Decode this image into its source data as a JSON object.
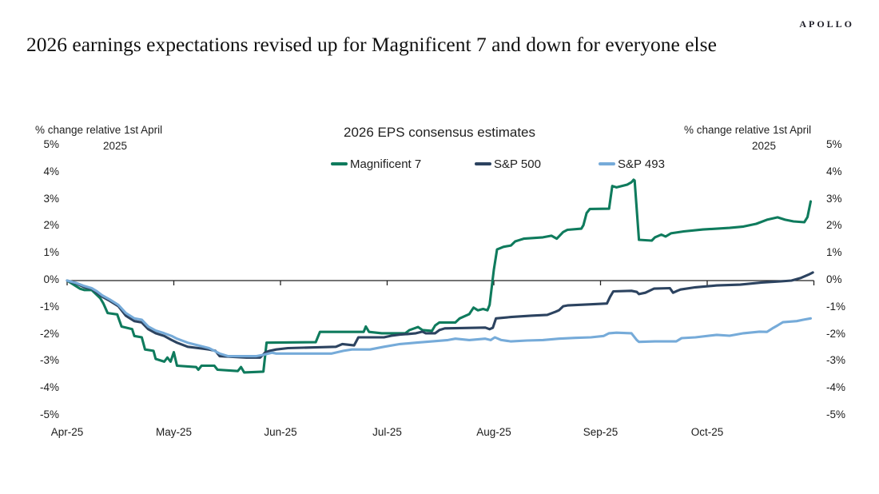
{
  "header": {
    "logo": "APOLLO",
    "title": "2026 earnings expectations revised up for Magnificent 7 and down for everyone else"
  },
  "axis_note": {
    "line1": "% change relative 1st April",
    "line2": "2025"
  },
  "chart_data": {
    "type": "line",
    "title": "2026 EPS consensus estimates",
    "xlabel": "",
    "ylabel": "% change relative 1st April 2025",
    "x_unit": "months since 2025-04-01",
    "x_tick_labels": [
      "Apr-25",
      "May-25",
      "Jun-25",
      "Jul-25",
      "Aug-25",
      "Sep-25",
      "Oct-25"
    ],
    "x_tick_positions": [
      0,
      1,
      2,
      3,
      4,
      5,
      6
    ],
    "x_axis_end": 7,
    "y_ticks": [
      5,
      4,
      3,
      2,
      1,
      0,
      -1,
      -2,
      -3,
      -4,
      -5
    ],
    "y_tick_suffix": "%",
    "ylim": [
      -5,
      5
    ],
    "grid": false,
    "legend_position": "top",
    "axis_color": "#222222",
    "series": [
      {
        "name": "Magnificent 7",
        "color": "#0f7b5d",
        "points": [
          [
            0,
            0
          ],
          [
            0.02,
            -0.05
          ],
          [
            0.12,
            -0.3
          ],
          [
            0.16,
            -0.35
          ],
          [
            0.23,
            -0.35
          ],
          [
            0.31,
            -0.65
          ],
          [
            0.34,
            -0.85
          ],
          [
            0.38,
            -1.2
          ],
          [
            0.47,
            -1.25
          ],
          [
            0.51,
            -1.7
          ],
          [
            0.61,
            -1.8
          ],
          [
            0.63,
            -2.05
          ],
          [
            0.7,
            -2.1
          ],
          [
            0.73,
            -2.55
          ],
          [
            0.81,
            -2.6
          ],
          [
            0.83,
            -2.9
          ],
          [
            0.91,
            -3.0
          ],
          [
            0.94,
            -2.85
          ],
          [
            0.97,
            -3.0
          ],
          [
            1.0,
            -2.65
          ],
          [
            1.03,
            -3.15
          ],
          [
            1.21,
            -3.2
          ],
          [
            1.23,
            -3.3
          ],
          [
            1.26,
            -3.15
          ],
          [
            1.38,
            -3.15
          ],
          [
            1.41,
            -3.3
          ],
          [
            1.6,
            -3.35
          ],
          [
            1.63,
            -3.2
          ],
          [
            1.66,
            -3.4
          ],
          [
            1.84,
            -3.37
          ],
          [
            1.87,
            -2.3
          ],
          [
            2.33,
            -2.28
          ],
          [
            2.37,
            -1.9
          ],
          [
            2.78,
            -1.9
          ],
          [
            2.8,
            -1.7
          ],
          [
            2.83,
            -1.9
          ],
          [
            2.95,
            -1.95
          ],
          [
            3.17,
            -1.95
          ],
          [
            3.21,
            -1.83
          ],
          [
            3.29,
            -1.72
          ],
          [
            3.33,
            -1.83
          ],
          [
            3.42,
            -1.86
          ],
          [
            3.45,
            -1.66
          ],
          [
            3.49,
            -1.55
          ],
          [
            3.64,
            -1.55
          ],
          [
            3.68,
            -1.4
          ],
          [
            3.77,
            -1.24
          ],
          [
            3.81,
            -1.0
          ],
          [
            3.85,
            -1.1
          ],
          [
            3.9,
            -1.05
          ],
          [
            3.94,
            -1.1
          ],
          [
            3.96,
            -0.9
          ],
          [
            4.0,
            0.4
          ],
          [
            4.03,
            1.15
          ],
          [
            4.09,
            1.25
          ],
          [
            4.16,
            1.3
          ],
          [
            4.2,
            1.45
          ],
          [
            4.24,
            1.5
          ],
          [
            4.28,
            1.55
          ],
          [
            4.46,
            1.6
          ],
          [
            4.54,
            1.66
          ],
          [
            4.59,
            1.55
          ],
          [
            4.65,
            1.8
          ],
          [
            4.69,
            1.88
          ],
          [
            4.82,
            1.92
          ],
          [
            4.84,
            2.05
          ],
          [
            4.87,
            2.5
          ],
          [
            4.9,
            2.65
          ],
          [
            5.08,
            2.66
          ],
          [
            5.11,
            3.5
          ],
          [
            5.15,
            3.45
          ],
          [
            5.25,
            3.55
          ],
          [
            5.29,
            3.64
          ],
          [
            5.31,
            3.73
          ],
          [
            5.32,
            3.7
          ],
          [
            5.36,
            1.51
          ],
          [
            5.48,
            1.48
          ],
          [
            5.51,
            1.6
          ],
          [
            5.57,
            1.7
          ],
          [
            5.61,
            1.63
          ],
          [
            5.66,
            1.75
          ],
          [
            5.78,
            1.82
          ],
          [
            5.96,
            1.89
          ],
          [
            6.21,
            1.95
          ],
          [
            6.34,
            2.0
          ],
          [
            6.46,
            2.1
          ],
          [
            6.56,
            2.25
          ],
          [
            6.66,
            2.34
          ],
          [
            6.73,
            2.25
          ],
          [
            6.81,
            2.19
          ],
          [
            6.91,
            2.16
          ],
          [
            6.94,
            2.35
          ],
          [
            6.97,
            2.93
          ]
        ]
      },
      {
        "name": "S&P 500",
        "color": "#2c4360",
        "points": [
          [
            0,
            0
          ],
          [
            0.08,
            -0.1
          ],
          [
            0.16,
            -0.25
          ],
          [
            0.23,
            -0.3
          ],
          [
            0.28,
            -0.45
          ],
          [
            0.33,
            -0.6
          ],
          [
            0.4,
            -0.75
          ],
          [
            0.48,
            -0.95
          ],
          [
            0.55,
            -1.3
          ],
          [
            0.63,
            -1.5
          ],
          [
            0.7,
            -1.55
          ],
          [
            0.76,
            -1.8
          ],
          [
            0.83,
            -1.95
          ],
          [
            0.91,
            -2.05
          ],
          [
            0.98,
            -2.2
          ],
          [
            1.03,
            -2.3
          ],
          [
            1.13,
            -2.45
          ],
          [
            1.23,
            -2.5
          ],
          [
            1.33,
            -2.55
          ],
          [
            1.39,
            -2.6
          ],
          [
            1.43,
            -2.8
          ],
          [
            1.68,
            -2.85
          ],
          [
            1.81,
            -2.85
          ],
          [
            1.86,
            -2.65
          ],
          [
            1.9,
            -2.6
          ],
          [
            1.96,
            -2.55
          ],
          [
            2.07,
            -2.5
          ],
          [
            2.52,
            -2.45
          ],
          [
            2.58,
            -2.35
          ],
          [
            2.69,
            -2.4
          ],
          [
            2.73,
            -2.1
          ],
          [
            2.97,
            -2.1
          ],
          [
            3.04,
            -2.04
          ],
          [
            3.12,
            -2.0
          ],
          [
            3.19,
            -1.98
          ],
          [
            3.27,
            -1.95
          ],
          [
            3.33,
            -1.89
          ],
          [
            3.36,
            -1.95
          ],
          [
            3.45,
            -1.95
          ],
          [
            3.49,
            -1.83
          ],
          [
            3.54,
            -1.77
          ],
          [
            3.92,
            -1.74
          ],
          [
            3.96,
            -1.8
          ],
          [
            3.99,
            -1.75
          ],
          [
            4.02,
            -1.4
          ],
          [
            4.16,
            -1.35
          ],
          [
            4.35,
            -1.3
          ],
          [
            4.5,
            -1.27
          ],
          [
            4.58,
            -1.15
          ],
          [
            4.61,
            -1.1
          ],
          [
            4.65,
            -0.95
          ],
          [
            4.69,
            -0.92
          ],
          [
            4.91,
            -0.88
          ],
          [
            5.06,
            -0.85
          ],
          [
            5.09,
            -0.6
          ],
          [
            5.12,
            -0.4
          ],
          [
            5.29,
            -0.38
          ],
          [
            5.34,
            -0.42
          ],
          [
            5.36,
            -0.5
          ],
          [
            5.42,
            -0.45
          ],
          [
            5.5,
            -0.3
          ],
          [
            5.65,
            -0.28
          ],
          [
            5.68,
            -0.45
          ],
          [
            5.72,
            -0.38
          ],
          [
            5.75,
            -0.33
          ],
          [
            5.89,
            -0.25
          ],
          [
            6.09,
            -0.18
          ],
          [
            6.31,
            -0.15
          ],
          [
            6.51,
            -0.07
          ],
          [
            6.69,
            -0.03
          ],
          [
            6.79,
            0.0
          ],
          [
            6.88,
            0.1
          ],
          [
            6.95,
            0.22
          ],
          [
            6.99,
            0.3
          ]
        ]
      },
      {
        "name": "S&P 493",
        "color": "#76abd9",
        "points": [
          [
            0,
            0
          ],
          [
            0.08,
            -0.08
          ],
          [
            0.16,
            -0.2
          ],
          [
            0.23,
            -0.28
          ],
          [
            0.28,
            -0.4
          ],
          [
            0.33,
            -0.55
          ],
          [
            0.4,
            -0.7
          ],
          [
            0.48,
            -0.9
          ],
          [
            0.55,
            -1.2
          ],
          [
            0.63,
            -1.4
          ],
          [
            0.7,
            -1.45
          ],
          [
            0.76,
            -1.7
          ],
          [
            0.83,
            -1.85
          ],
          [
            0.91,
            -1.95
          ],
          [
            0.98,
            -2.05
          ],
          [
            1.03,
            -2.15
          ],
          [
            1.13,
            -2.3
          ],
          [
            1.23,
            -2.4
          ],
          [
            1.33,
            -2.5
          ],
          [
            1.43,
            -2.7
          ],
          [
            1.51,
            -2.8
          ],
          [
            1.77,
            -2.8
          ],
          [
            1.84,
            -2.75
          ],
          [
            1.92,
            -2.67
          ],
          [
            1.96,
            -2.7
          ],
          [
            2.48,
            -2.7
          ],
          [
            2.59,
            -2.6
          ],
          [
            2.67,
            -2.55
          ],
          [
            2.84,
            -2.55
          ],
          [
            2.97,
            -2.45
          ],
          [
            3.12,
            -2.35
          ],
          [
            3.27,
            -2.3
          ],
          [
            3.42,
            -2.25
          ],
          [
            3.57,
            -2.2
          ],
          [
            3.64,
            -2.15
          ],
          [
            3.77,
            -2.2
          ],
          [
            3.92,
            -2.15
          ],
          [
            3.97,
            -2.2
          ],
          [
            4.01,
            -2.1
          ],
          [
            4.07,
            -2.2
          ],
          [
            4.16,
            -2.25
          ],
          [
            4.31,
            -2.22
          ],
          [
            4.46,
            -2.2
          ],
          [
            4.61,
            -2.15
          ],
          [
            4.76,
            -2.12
          ],
          [
            4.91,
            -2.1
          ],
          [
            5.03,
            -2.05
          ],
          [
            5.08,
            -1.95
          ],
          [
            5.15,
            -1.93
          ],
          [
            5.29,
            -1.95
          ],
          [
            5.34,
            -2.2
          ],
          [
            5.36,
            -2.27
          ],
          [
            5.51,
            -2.25
          ],
          [
            5.71,
            -2.25
          ],
          [
            5.76,
            -2.13
          ],
          [
            5.89,
            -2.1
          ],
          [
            6.09,
            -2.01
          ],
          [
            6.21,
            -2.04
          ],
          [
            6.34,
            -1.95
          ],
          [
            6.49,
            -1.89
          ],
          [
            6.56,
            -1.9
          ],
          [
            6.62,
            -1.75
          ],
          [
            6.66,
            -1.66
          ],
          [
            6.71,
            -1.54
          ],
          [
            6.84,
            -1.5
          ],
          [
            6.9,
            -1.45
          ],
          [
            6.97,
            -1.4
          ]
        ]
      }
    ]
  }
}
